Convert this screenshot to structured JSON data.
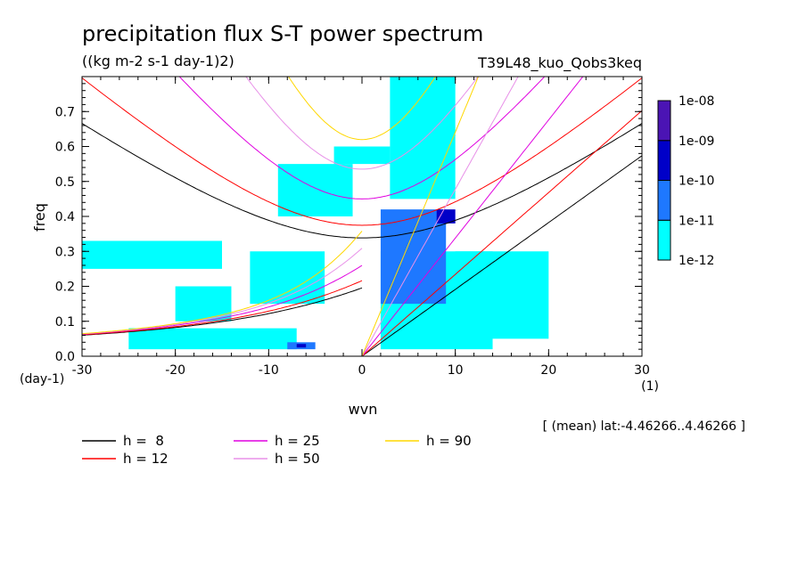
{
  "chart_data": {
    "type": "heatmap",
    "title": "precipitation flux S-T power spectrum",
    "subtitle": "((kg m-2 s-1 day-1)2)",
    "experiment": "T39L48_kuo_Qobs3keq",
    "xlabel": "wvn",
    "xunit": "(1)",
    "ylabel": "freq",
    "yunit": "(day-1)",
    "xlim": [
      -30,
      30
    ],
    "ylim": [
      0,
      0.8
    ],
    "xticks": [
      -30,
      -20,
      -10,
      0,
      10,
      20,
      30
    ],
    "xtick_labels": [
      "-30",
      "-20",
      "-10",
      "0",
      "10",
      "20",
      "30"
    ],
    "yticks": [
      0,
      0.1,
      0.2,
      0.3,
      0.4,
      0.5,
      0.6,
      0.7
    ],
    "ytick_labels": [
      "0.0",
      "0.1",
      "0.2",
      "0.3",
      "0.4",
      "0.5",
      "0.6",
      "0.7"
    ],
    "note": "[ (mean) lat:-4.46266..4.46266 ]",
    "colorbar": {
      "levels": [
        "1e-12",
        "1e-11",
        "1e-10",
        "1e-09",
        "1e-08"
      ],
      "colors": [
        "#00ffff",
        "#1e78ff",
        "#0000c8",
        "#4b14b4"
      ]
    },
    "power_regions": [
      {
        "x": [
          -25,
          -7
        ],
        "y": [
          0.02,
          0.08
        ],
        "level": 0
      },
      {
        "x": [
          -20,
          -14
        ],
        "y": [
          0.1,
          0.2
        ],
        "level": 0
      },
      {
        "x": [
          -12,
          -4
        ],
        "y": [
          0.15,
          0.3
        ],
        "level": 0
      },
      {
        "x": [
          -30,
          -15
        ],
        "y": [
          0.25,
          0.33
        ],
        "level": 0
      },
      {
        "x": [
          -9,
          -1
        ],
        "y": [
          0.4,
          0.55
        ],
        "level": 0
      },
      {
        "x": [
          -3,
          3
        ],
        "y": [
          0.55,
          0.6
        ],
        "level": 0
      },
      {
        "x": [
          2,
          14
        ],
        "y": [
          0.02,
          0.3
        ],
        "level": 0
      },
      {
        "x": [
          3,
          10
        ],
        "y": [
          0.45,
          0.8
        ],
        "level": 0
      },
      {
        "x": [
          10,
          20
        ],
        "y": [
          0.05,
          0.3
        ],
        "level": 0
      },
      {
        "x": [
          -8,
          -5
        ],
        "y": [
          0.02,
          0.04
        ],
        "level": 1
      },
      {
        "x": [
          2,
          9
        ],
        "y": [
          0.15,
          0.42
        ],
        "level": 1
      },
      {
        "x": [
          8,
          10
        ],
        "y": [
          0.38,
          0.42
        ],
        "level": 2
      },
      {
        "x": [
          -7,
          -6
        ],
        "y": [
          0.025,
          0.035
        ],
        "level": 2
      }
    ],
    "dispersion_curves": [
      {
        "label": "h =  8",
        "color": "#000000"
      },
      {
        "label": "h = 12",
        "color": "#ff0000"
      },
      {
        "label": "h = 25",
        "color": "#e000e0"
      },
      {
        "label": "h = 50",
        "color": "#e890e8"
      },
      {
        "label": "h = 90",
        "color": "#ffd700"
      }
    ]
  }
}
